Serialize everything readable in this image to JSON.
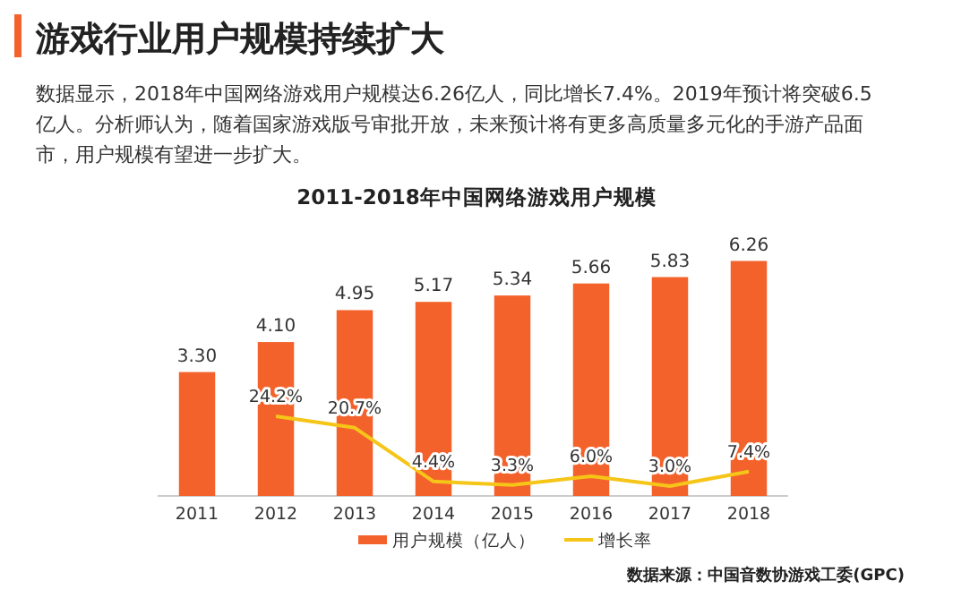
{
  "chart_data": {
    "type": "bar",
    "title": "2011-2018年中国网络游戏用户规模",
    "annotations": [
      "游戏行业用户规模持续扩大",
      "数据显示，2018年中国网络游戏用户规模达6.26亿人，同比增长7.4%。2019年预计将突破6.5亿人。分析师认为，随着国家游戏版号审批开放，未来预计将有更多高质量多元化的手游产品面市，用户规模有望进一步扩大。",
      "数据来源：中国音数协游戏工委(GPC)"
    ],
    "categories": [
      "2011",
      "2012",
      "2013",
      "2014",
      "2015",
      "2016",
      "2017",
      "2018"
    ],
    "series": [
      {
        "name": "用户规模（亿人）",
        "color": "#f4622c",
        "values": [
          3.3,
          4.1,
          4.95,
          5.17,
          5.34,
          5.66,
          5.83,
          6.26
        ],
        "value_labels": [
          "3.30",
          "4.10",
          "4.95",
          "5.17",
          "5.34",
          "5.66",
          "5.83",
          "6.26"
        ]
      },
      {
        "name": "增长率",
        "type": "line",
        "axis": "y2",
        "color": "#f5c518",
        "values": [
          null,
          24.2,
          20.7,
          4.4,
          3.3,
          6.0,
          3.0,
          7.4
        ],
        "value_labels": [
          null,
          "24.2%",
          "20.7%",
          "4.4%",
          "3.3%",
          "6.0%",
          "3.0%",
          "7.4%"
        ]
      }
    ],
    "legend": "bottom",
    "tick_labels": "x"
  }
}
